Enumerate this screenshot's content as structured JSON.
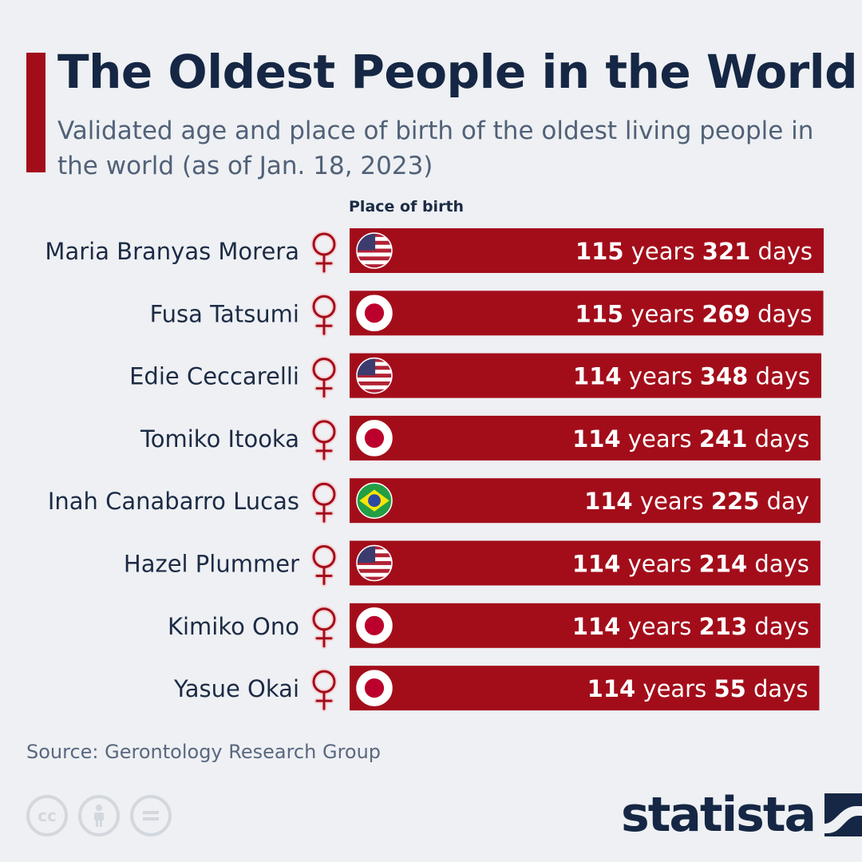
{
  "title": "The Oldest People in the World",
  "subtitle": "Validated age and place of birth of the oldest living people in the world (as of Jan. 18, 2023)",
  "column_header": "Place of birth",
  "source": "Source: Gerontology Research Group",
  "brand": "statista",
  "colors": {
    "accent": "#a30d1a",
    "bar": "#a30d1a",
    "text": "#1c2b45"
  },
  "chart_data": {
    "type": "bar",
    "orientation": "horizontal",
    "categories": [
      "Maria Branyas Morera",
      "Fusa Tatsumi",
      "Edie Ceccarelli",
      "Tomiko Itooka",
      "Inah Canabarro Lucas",
      "Hazel Plummer",
      "Kimiko Ono",
      "Yasue Okai"
    ],
    "series": [
      {
        "values": [
          115.88,
          115.74,
          114.95,
          114.66,
          114.62,
          114.59,
          114.58,
          114.15
        ]
      }
    ],
    "labels": [
      {
        "years": "115",
        "days": "321",
        "unit": "days"
      },
      {
        "years": "115",
        "days": "269",
        "unit": "days"
      },
      {
        "years": "114",
        "days": "348",
        "unit": "days"
      },
      {
        "years": "114",
        "days": "241",
        "unit": "days"
      },
      {
        "years": "114",
        "days": "225",
        "unit": "day"
      },
      {
        "years": "114",
        "days": "214",
        "unit": "days"
      },
      {
        "years": "114",
        "days": "213",
        "unit": "days"
      },
      {
        "years": "114",
        "days": "55",
        "unit": "days"
      }
    ],
    "years_word": "years",
    "place_of_birth": [
      "United States",
      "Japan",
      "United States",
      "Japan",
      "Brazil",
      "United States",
      "Japan",
      "Japan"
    ],
    "gender": [
      "female",
      "female",
      "female",
      "female",
      "female",
      "female",
      "female",
      "female"
    ],
    "xlim": [
      0,
      116
    ]
  }
}
